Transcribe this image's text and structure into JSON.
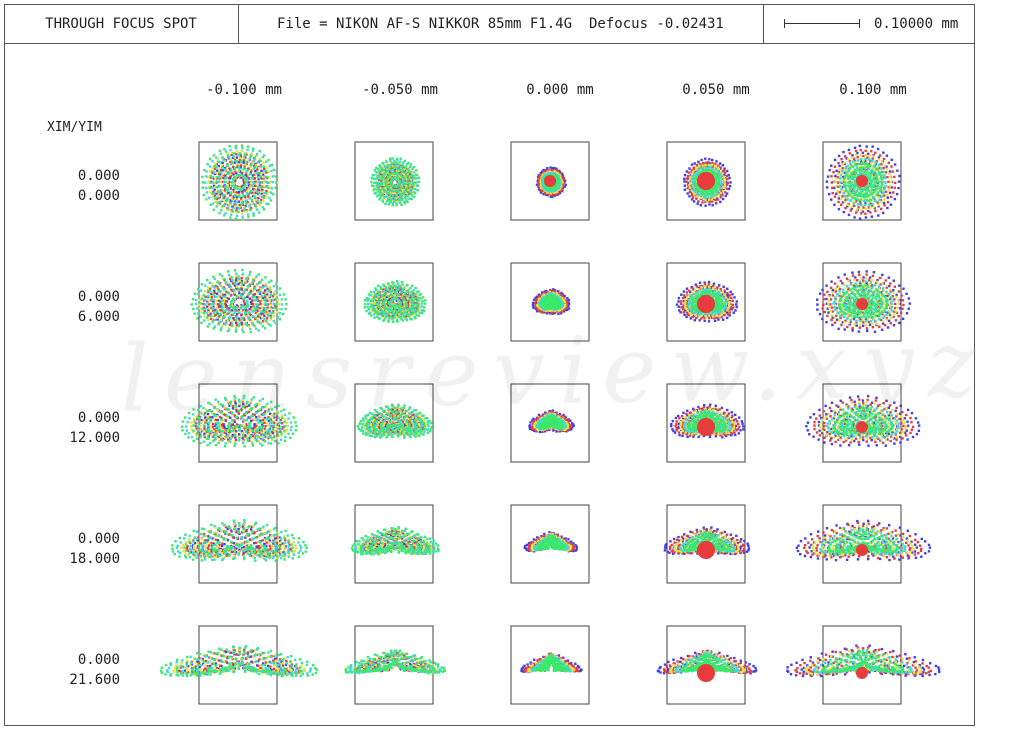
{
  "header": {
    "title": "THROUGH FOCUS SPOT",
    "file_label": "File = NIKON AF-S NIKKOR 85mm F1.4G",
    "defocus_label": "Defocus -0.02431",
    "scale_label": "0.10000 mm"
  },
  "field_axis_label": "XIM/YIM",
  "focus_positions": [
    "-0.100 mm",
    "-0.050 mm",
    "0.000 mm",
    "0.050 mm",
    "0.100 mm"
  ],
  "field_points": [
    {
      "xim": "0.000",
      "yim": "0.000"
    },
    {
      "xim": "0.000",
      "yim": "6.000"
    },
    {
      "xim": "0.000",
      "yim": "12.000"
    },
    {
      "xim": "0.000",
      "yim": "18.000"
    },
    {
      "xim": "0.000",
      "yim": "21.600"
    }
  ],
  "watermark": "lensreview.xyz",
  "colors": {
    "wavelength_blue": "#3f3fe8",
    "wavelength_red": "#e83b3b",
    "wavelength_yellow": "#e8e23b",
    "wavelength_cyan": "#3bd8e8",
    "wavelength_green": "#3be86a",
    "frame": "#555555"
  }
}
